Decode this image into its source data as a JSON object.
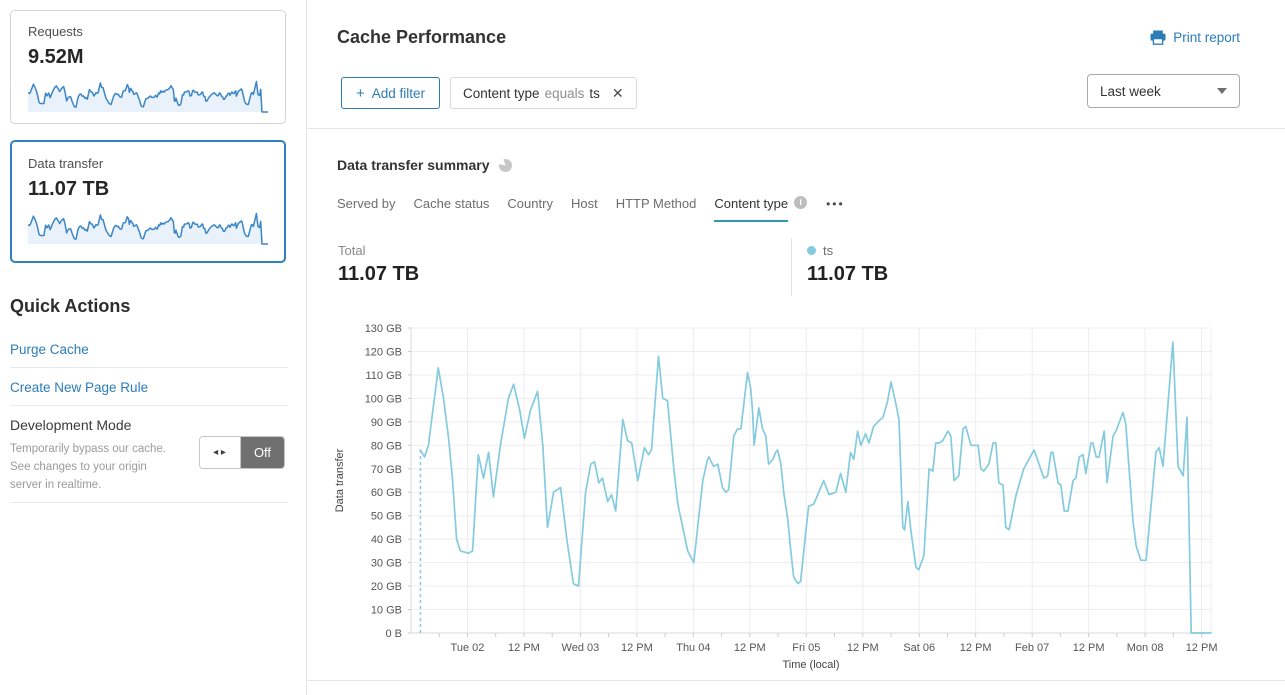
{
  "colors": {
    "link_blue": "#2c7cb9",
    "active_card_border": "#2e80bf",
    "tab_underline": "#2f96ad",
    "chart_line": "#84cbdf",
    "sparkline_line": "#3a86c6",
    "sparkline_fill": "#e9f1fa",
    "toggle_off_bg": "#707070"
  },
  "sidebar": {
    "cards": [
      {
        "label": "Requests",
        "value": "9.52M"
      },
      {
        "label": "Data transfer",
        "value": "11.07 TB"
      }
    ],
    "quick_actions": {
      "title": "Quick Actions",
      "links": [
        "Purge Cache",
        "Create New Page Rule"
      ],
      "dev_mode": {
        "title": "Development Mode",
        "description": "Temporarily bypass our cache. See changes to your origin server in realtime.",
        "toggle_state": "Off"
      }
    }
  },
  "header": {
    "title": "Cache Performance",
    "print_label": "Print report",
    "add_filter_label": "Add filter",
    "plus_glyph": "+",
    "filter_chip": {
      "field": "Content type",
      "operator": "equals",
      "value": "ts",
      "close_glyph": "✕"
    },
    "time_range": "Last week"
  },
  "summary": {
    "title": "Data transfer summary",
    "tabs": [
      {
        "label": "Served by"
      },
      {
        "label": "Cache status"
      },
      {
        "label": "Country"
      },
      {
        "label": "Host"
      },
      {
        "label": "HTTP Method"
      },
      {
        "label": "Content type",
        "active": true,
        "has_info": true
      }
    ],
    "more_label": "•••",
    "total_label": "Total",
    "total_value": "11.07 TB",
    "legend": {
      "name": "ts",
      "value": "11.07 TB",
      "color": "#84cbdf"
    }
  },
  "chart_data": {
    "type": "line",
    "title": "Data transfer summary",
    "xlabel": "Time (local)",
    "ylabel": "Data transfer",
    "unit": "GB",
    "ylim_gb": [
      0,
      130
    ],
    "y_tick_labels": [
      "0 B",
      "10 GB",
      "20 GB",
      "30 GB",
      "40 GB",
      "50 GB",
      "60 GB",
      "70 GB",
      "80 GB",
      "90 GB",
      "100 GB",
      "110 GB",
      "120 GB",
      "130 GB"
    ],
    "x_domain_hours": [
      -12,
      158
    ],
    "x_ticks": [
      {
        "t": 0,
        "label": "Tue 02"
      },
      {
        "t": 12,
        "label": "12 PM"
      },
      {
        "t": 24,
        "label": "Wed 03"
      },
      {
        "t": 36,
        "label": "12 PM"
      },
      {
        "t": 48,
        "label": "Thu 04"
      },
      {
        "t": 60,
        "label": "12 PM"
      },
      {
        "t": 72,
        "label": "Fri 05"
      },
      {
        "t": 84,
        "label": "12 PM"
      },
      {
        "t": 96,
        "label": "Sat 06"
      },
      {
        "t": 108,
        "label": "12 PM"
      },
      {
        "t": 120,
        "label": "Feb 07"
      },
      {
        "t": 132,
        "label": "12 PM"
      },
      {
        "t": 144,
        "label": "Mon 08"
      },
      {
        "t": 156,
        "label": "12 PM"
      }
    ],
    "minor_tick_hours": 6,
    "grid": true,
    "incomplete_start": {
      "t": -10,
      "value_gb": 78
    },
    "series": [
      {
        "name": "ts",
        "color": "#84cbdf",
        "points": [
          [
            -10,
            78
          ],
          [
            -9.1,
            75
          ],
          [
            -8.3,
            80
          ],
          [
            -6.2,
            113
          ],
          [
            -5.1,
            100
          ],
          [
            -4,
            83
          ],
          [
            -3.2,
            66
          ],
          [
            -2.3,
            40
          ],
          [
            -1.5,
            35
          ],
          [
            0.2,
            34
          ],
          [
            1.1,
            35
          ],
          [
            2.3,
            76
          ],
          [
            3.4,
            66
          ],
          [
            4.5,
            77
          ],
          [
            5.5,
            58
          ],
          [
            7,
            80
          ],
          [
            8.7,
            100
          ],
          [
            9.8,
            106
          ],
          [
            11.1,
            95
          ],
          [
            12.1,
            83
          ],
          [
            13.4,
            95
          ],
          [
            14.9,
            103
          ],
          [
            16,
            80
          ],
          [
            17,
            45
          ],
          [
            18.3,
            60
          ],
          [
            19.8,
            62
          ],
          [
            21.1,
            40
          ],
          [
            22.5,
            21
          ],
          [
            23.6,
            20
          ],
          [
            25.1,
            60
          ],
          [
            26.2,
            72
          ],
          [
            27,
            73
          ],
          [
            27.9,
            64
          ],
          [
            28.7,
            66
          ],
          [
            29.8,
            56
          ],
          [
            30.6,
            59
          ],
          [
            31.5,
            52
          ],
          [
            33,
            91
          ],
          [
            34,
            82
          ],
          [
            34.9,
            81
          ],
          [
            36.2,
            65
          ],
          [
            37.6,
            79
          ],
          [
            38.5,
            76
          ],
          [
            39.1,
            78
          ],
          [
            40.6,
            118
          ],
          [
            41.5,
            100
          ],
          [
            42.5,
            99
          ],
          [
            43.8,
            71
          ],
          [
            44.7,
            55
          ],
          [
            46.8,
            35
          ],
          [
            48.1,
            30
          ],
          [
            50,
            65
          ],
          [
            51,
            74
          ],
          [
            51.3,
            75
          ],
          [
            52.3,
            71
          ],
          [
            53.2,
            72
          ],
          [
            54.2,
            62
          ],
          [
            54.9,
            60
          ],
          [
            55.5,
            61
          ],
          [
            56.6,
            84
          ],
          [
            57.4,
            87
          ],
          [
            58.1,
            87
          ],
          [
            59.5,
            111
          ],
          [
            60.2,
            104
          ],
          [
            60.6,
            94
          ],
          [
            60.9,
            80
          ],
          [
            61.9,
            96
          ],
          [
            62.7,
            87
          ],
          [
            63.4,
            84
          ],
          [
            64,
            72
          ],
          [
            64.9,
            74
          ],
          [
            65.5,
            77
          ],
          [
            65.9,
            78
          ],
          [
            66.6,
            72
          ],
          [
            67.2,
            60
          ],
          [
            68.1,
            48
          ],
          [
            68.7,
            35
          ],
          [
            69.3,
            24
          ],
          [
            70.2,
            21
          ],
          [
            70.8,
            22
          ],
          [
            71.9,
            43
          ],
          [
            72.5,
            54
          ],
          [
            73.6,
            55
          ],
          [
            75.7,
            65
          ],
          [
            76.8,
            59
          ],
          [
            78.3,
            60
          ],
          [
            79.3,
            68
          ],
          [
            80.4,
            60
          ],
          [
            81.4,
            77
          ],
          [
            82.1,
            74
          ],
          [
            82.9,
            86
          ],
          [
            83.6,
            80
          ],
          [
            84.6,
            85
          ],
          [
            85.3,
            81
          ],
          [
            86.3,
            88
          ],
          [
            87.2,
            90
          ],
          [
            88.3,
            92
          ],
          [
            89.3,
            99
          ],
          [
            90,
            107
          ],
          [
            91,
            98
          ],
          [
            91.7,
            91
          ],
          [
            92.5,
            45
          ],
          [
            92.9,
            44
          ],
          [
            93.6,
            56
          ],
          [
            94.2,
            44
          ],
          [
            95.3,
            28
          ],
          [
            95.9,
            27
          ],
          [
            97,
            33
          ],
          [
            98.1,
            70
          ],
          [
            98.9,
            69
          ],
          [
            99.5,
            81
          ],
          [
            100.2,
            81
          ],
          [
            101,
            82
          ],
          [
            102.1,
            86
          ],
          [
            102.7,
            84
          ],
          [
            103.4,
            65
          ],
          [
            104.4,
            67
          ],
          [
            105.3,
            87
          ],
          [
            105.9,
            88
          ],
          [
            107,
            80
          ],
          [
            108.5,
            80
          ],
          [
            109.1,
            70
          ],
          [
            109.7,
            69
          ],
          [
            110.8,
            72
          ],
          [
            111.7,
            81
          ],
          [
            112.3,
            81
          ],
          [
            112.9,
            64
          ],
          [
            113.8,
            63
          ],
          [
            114.4,
            45
          ],
          [
            115.1,
            44
          ],
          [
            116.6,
            59
          ],
          [
            118.2,
            70
          ],
          [
            120.4,
            78
          ],
          [
            122.5,
            66
          ],
          [
            123.3,
            67
          ],
          [
            124,
            77
          ],
          [
            124.4,
            77
          ],
          [
            125.5,
            64
          ],
          [
            126.1,
            63
          ],
          [
            126.8,
            52
          ],
          [
            127.6,
            52
          ],
          [
            128.7,
            65
          ],
          [
            129.3,
            66
          ],
          [
            130,
            75
          ],
          [
            130.8,
            76
          ],
          [
            131.4,
            68
          ],
          [
            132.5,
            81
          ],
          [
            132.9,
            81
          ],
          [
            133.6,
            75
          ],
          [
            134.2,
            75
          ],
          [
            135.3,
            86
          ],
          [
            135.9,
            64
          ],
          [
            137.2,
            84
          ],
          [
            137.8,
            86
          ],
          [
            139.3,
            94
          ],
          [
            139.9,
            89
          ],
          [
            141.4,
            48
          ],
          [
            142.1,
            37
          ],
          [
            143.1,
            31
          ],
          [
            144.2,
            31
          ],
          [
            146.3,
            77
          ],
          [
            147,
            79
          ],
          [
            147.8,
            71
          ],
          [
            149.9,
            124
          ],
          [
            151,
            71
          ],
          [
            152.1,
            67
          ],
          [
            152.9,
            92
          ],
          [
            153.8,
            0
          ],
          [
            158,
            0
          ]
        ]
      }
    ]
  }
}
